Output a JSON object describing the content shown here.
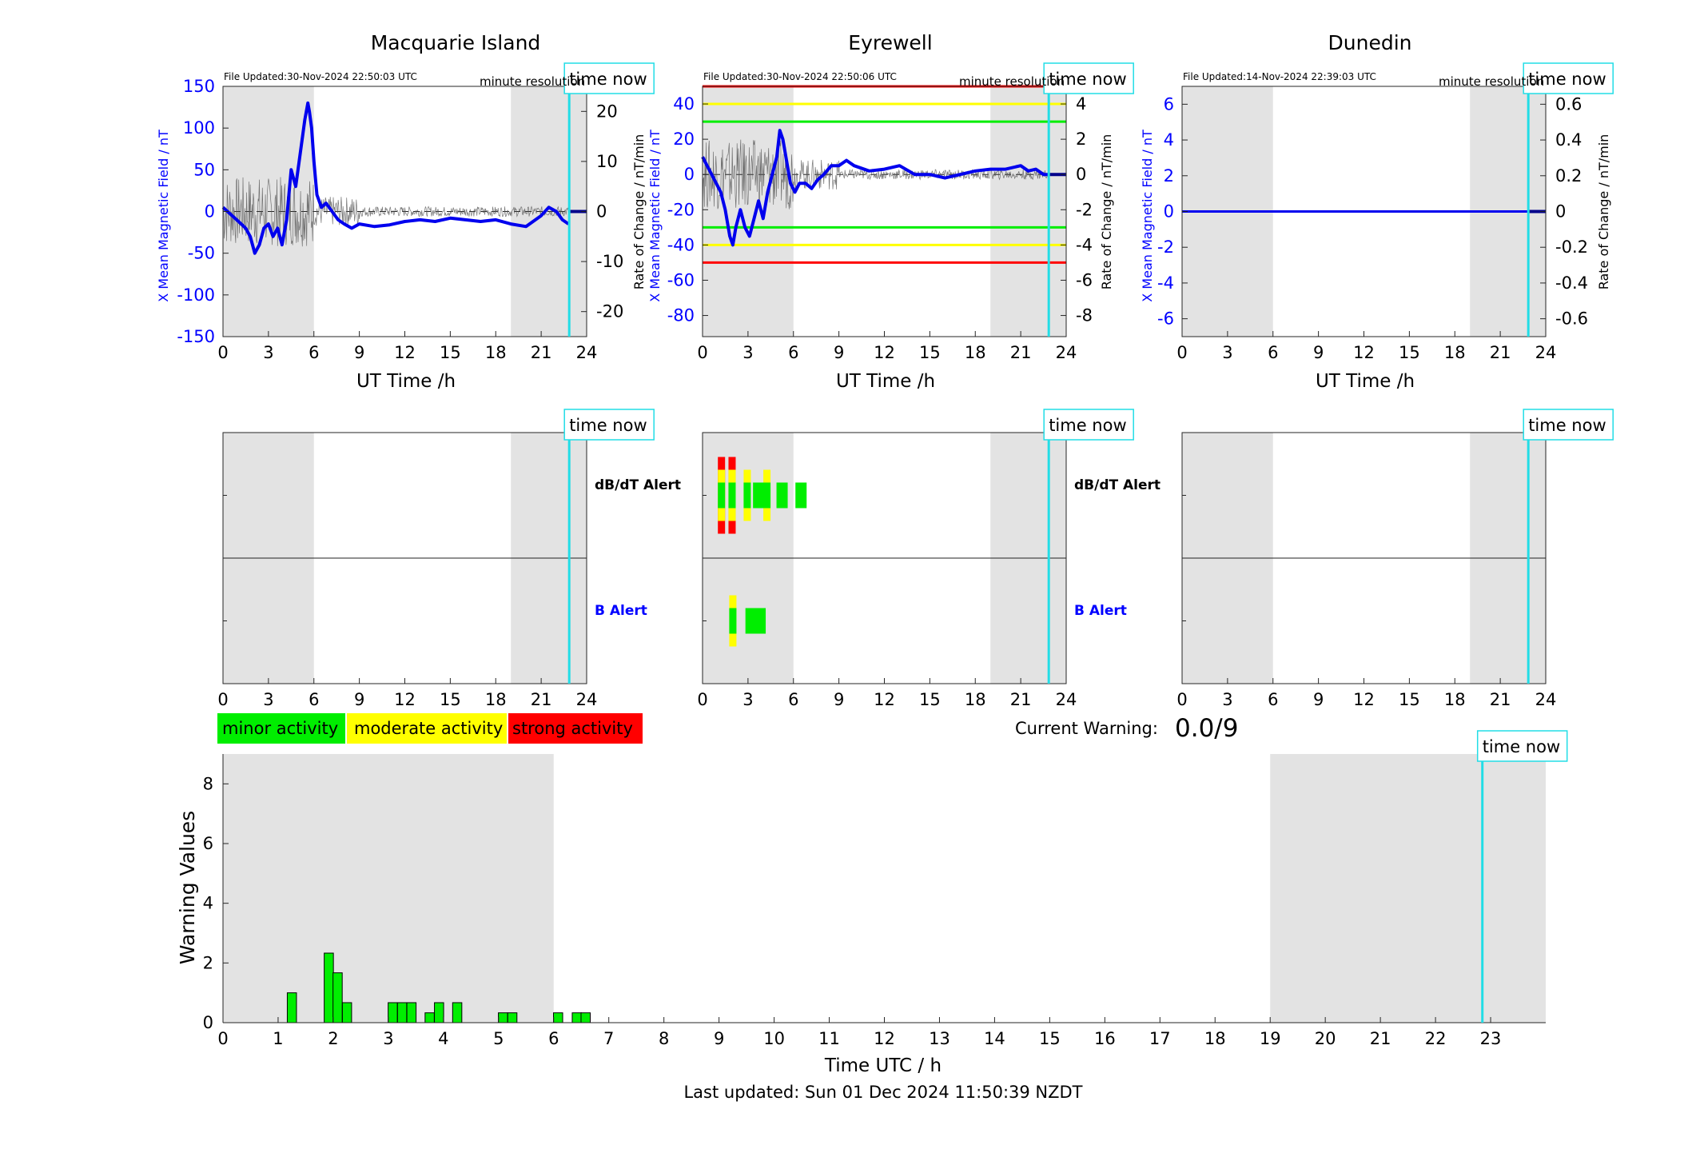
{
  "colors": {
    "b_line": "#0000ee",
    "rate_line": "#555555",
    "night_shade": "#e3e3e3",
    "time_now": "#22dde6",
    "minor": "#00ee00",
    "moderate": "#ffff00",
    "strong": "#ff0000",
    "axis_blue": "#0000ff"
  },
  "labels": {
    "time_now": "time now",
    "minute_resolution": "minute resolution",
    "ut_time": "UT Time /h",
    "y_left": "X Mean Magnetic Field / nT",
    "y_right": "Rate of Change / nT/min",
    "dbdt_alert": "dB/dT Alert",
    "b_alert": "B Alert",
    "current_warning_label": "Current Warning:",
    "current_warning_value": "0.0/9",
    "warning_ylabel": "Warning Values",
    "warning_xlabel": "Time UTC / h",
    "last_updated": "Last updated: Sun 01 Dec 2024 11:50:39 NZDT"
  },
  "legend": {
    "minor": "minor activity",
    "moderate": "moderate activity",
    "strong": "strong activity"
  },
  "chart_data": [
    {
      "type": "line",
      "title": "Macquarie Island",
      "file_updated": "File Updated:30-Nov-2024 22:50:03 UTC",
      "xlabel": "UT Time /h",
      "ylabel": "X Mean Magnetic Field / nT",
      "ylabel_right": "Rate of Change / nT/min",
      "xlim": [
        0,
        24
      ],
      "ylim": [
        -150,
        150
      ],
      "ylim_right": [
        -25,
        25
      ],
      "xticks": [
        "0",
        "3",
        "6",
        "9",
        "12",
        "15",
        "18",
        "21",
        "24"
      ],
      "yticks": [
        "150",
        "100",
        "50",
        "0",
        "-50",
        "-100",
        "-150"
      ],
      "yticks_right": [
        "20",
        "10",
        "0",
        "-10",
        "-20"
      ],
      "night_bands": [
        [
          0,
          6
        ],
        [
          19,
          24
        ]
      ],
      "time_now": 22.85,
      "threshold_lines": [],
      "series": [
        {
          "name": "X Mean Magnetic Field",
          "x": [
            0,
            0.3,
            0.6,
            0.9,
            1.2,
            1.5,
            1.8,
            2.1,
            2.4,
            2.7,
            3.0,
            3.3,
            3.6,
            3.9,
            4.2,
            4.5,
            4.8,
            5.1,
            5.4,
            5.6,
            5.7,
            5.85,
            6.0,
            6.2,
            6.5,
            6.8,
            7.2,
            7.6,
            8.0,
            8.5,
            9.0,
            10,
            11,
            12,
            13,
            14,
            15,
            16,
            17,
            18,
            19,
            20,
            21,
            21.5,
            22,
            22.4,
            22.8
          ],
          "y": [
            5,
            0,
            -5,
            -10,
            -15,
            -20,
            -30,
            -50,
            -40,
            -20,
            -15,
            -30,
            -20,
            -40,
            -10,
            50,
            30,
            70,
            110,
            130,
            120,
            100,
            60,
            20,
            5,
            10,
            0,
            -10,
            -15,
            -20,
            -15,
            -18,
            -16,
            -12,
            -10,
            -12,
            -8,
            -10,
            -12,
            -10,
            -15,
            -18,
            -5,
            5,
            0,
            -10,
            -15
          ]
        }
      ]
    },
    {
      "type": "line",
      "title": "Eyrewell",
      "file_updated": "File Updated:30-Nov-2024 22:50:06 UTC",
      "xlabel": "UT Time /h",
      "ylabel": "X Mean Magnetic Field / nT",
      "ylabel_right": "Rate of Change / nT/min",
      "xlim": [
        0,
        24
      ],
      "ylim": [
        -92,
        50
      ],
      "ylim_right": [
        -9.2,
        5
      ],
      "xticks": [
        "0",
        "3",
        "6",
        "9",
        "12",
        "15",
        "18",
        "21",
        "24"
      ],
      "yticks": [
        "40",
        "20",
        "0",
        "-20",
        "-40",
        "-60",
        "-80"
      ],
      "yticks_right": [
        "4",
        "2",
        "0",
        "-2",
        "-4",
        "-6",
        "-8"
      ],
      "night_bands": [
        [
          0,
          6
        ],
        [
          19,
          24
        ]
      ],
      "time_now": 22.85,
      "threshold_lines": [
        {
          "value": 50,
          "level": "strong"
        },
        {
          "value": 40,
          "level": "moderate"
        },
        {
          "value": 30,
          "level": "minor"
        },
        {
          "value": -30,
          "level": "minor"
        },
        {
          "value": -40,
          "level": "moderate"
        },
        {
          "value": -50,
          "level": "strong"
        }
      ],
      "series": [
        {
          "name": "X Mean Magnetic Field",
          "x": [
            0,
            0.3,
            0.6,
            0.9,
            1.2,
            1.5,
            1.8,
            2.0,
            2.2,
            2.5,
            2.8,
            3.1,
            3.4,
            3.7,
            4.0,
            4.3,
            4.6,
            4.9,
            5.1,
            5.3,
            5.5,
            5.8,
            6.1,
            6.4,
            6.8,
            7.2,
            7.6,
            8.0,
            8.5,
            9.0,
            9.5,
            10,
            11,
            12,
            13,
            14,
            15,
            16,
            17,
            18,
            19,
            20,
            21,
            21.5,
            22,
            22.5,
            22.9
          ],
          "y": [
            10,
            5,
            0,
            -5,
            -10,
            -20,
            -35,
            -40,
            -30,
            -20,
            -30,
            -35,
            -25,
            -15,
            -25,
            -10,
            0,
            10,
            25,
            20,
            10,
            -5,
            -10,
            -5,
            -5,
            -8,
            -3,
            0,
            5,
            5,
            8,
            5,
            2,
            3,
            5,
            0,
            0,
            -2,
            0,
            2,
            3,
            3,
            5,
            2,
            3,
            0,
            0
          ]
        }
      ]
    },
    {
      "type": "line",
      "title": "Dunedin",
      "file_updated": "File Updated:14-Nov-2024 22:39:03 UTC",
      "xlabel": "UT Time /h",
      "ylabel": "X Mean Magnetic Field / nT",
      "ylabel_right": "Rate of Change / nT/min",
      "xlim": [
        0,
        24
      ],
      "ylim": [
        -7,
        7
      ],
      "ylim_right": [
        -0.7,
        0.7
      ],
      "xticks": [
        "0",
        "3",
        "6",
        "9",
        "12",
        "15",
        "18",
        "21",
        "24"
      ],
      "yticks": [
        "6",
        "4",
        "2",
        "0",
        "-2",
        "-4",
        "-6"
      ],
      "yticks_right": [
        "0.6",
        "0.4",
        "0.2",
        "0",
        "-0.2",
        "-0.4",
        "-0.6"
      ],
      "night_bands": [
        [
          0,
          6
        ],
        [
          19,
          24
        ]
      ],
      "time_now": 22.85,
      "threshold_lines": [],
      "series": [
        {
          "name": "X Mean Magnetic Field",
          "x": [
            0,
            24
          ],
          "y": [
            0,
            0
          ]
        }
      ]
    },
    {
      "type": "timeline",
      "station": "Macquarie Island",
      "xlim": [
        0,
        24
      ],
      "xticks": [
        "0",
        "3",
        "6",
        "9",
        "12",
        "15",
        "18",
        "21",
        "24"
      ],
      "night_bands": [
        [
          0,
          6
        ],
        [
          19,
          24
        ]
      ],
      "time_now": 22.85,
      "dbdt_alerts": [],
      "b_alerts": []
    },
    {
      "type": "timeline",
      "station": "Eyrewell",
      "xlim": [
        0,
        24
      ],
      "xticks": [
        "0",
        "3",
        "6",
        "9",
        "12",
        "15",
        "18",
        "21",
        "24"
      ],
      "night_bands": [
        [
          0,
          6
        ],
        [
          19,
          24
        ]
      ],
      "time_now": 22.85,
      "dbdt_alerts": [
        {
          "t": 1.25,
          "level": 3
        },
        {
          "t": 1.95,
          "level": 3
        },
        {
          "t": 2.95,
          "level": 2
        },
        {
          "t": 4.25,
          "level": 2
        },
        {
          "t": 5.25,
          "level": 1
        },
        {
          "t": 6.5,
          "level": 1
        },
        {
          "t": 3.7,
          "level": 1
        }
      ],
      "b_alerts": [
        {
          "t": 2.0,
          "level": 2
        },
        {
          "t": 3.2,
          "level": 1
        },
        {
          "t": 3.8,
          "level": 1
        }
      ]
    },
    {
      "type": "timeline",
      "station": "Dunedin",
      "xlim": [
        0,
        24
      ],
      "xticks": [
        "0",
        "3",
        "6",
        "9",
        "12",
        "15",
        "18",
        "21",
        "24"
      ],
      "night_bands": [
        [
          0,
          6
        ],
        [
          19,
          24
        ]
      ],
      "time_now": 22.85,
      "dbdt_alerts": [],
      "b_alerts": []
    },
    {
      "type": "bar",
      "xlabel": "Time UTC / h",
      "ylabel": "Warning Values",
      "xlim": [
        0,
        24
      ],
      "ylim": [
        0,
        9
      ],
      "xticks": [
        "0",
        "1",
        "2",
        "3",
        "4",
        "5",
        "6",
        "7",
        "8",
        "9",
        "10",
        "11",
        "12",
        "13",
        "14",
        "15",
        "16",
        "17",
        "18",
        "19",
        "20",
        "21",
        "22",
        "23"
      ],
      "yticks": [
        "0",
        "2",
        "4",
        "6",
        "8"
      ],
      "night_bands": [
        [
          0,
          6
        ],
        [
          19,
          24
        ]
      ],
      "time_now": 22.85,
      "bar_width": 0.167,
      "x": [
        1.25,
        1.92,
        2.08,
        2.25,
        3.08,
        3.25,
        3.42,
        3.75,
        3.92,
        4.25,
        5.08,
        5.25,
        6.08,
        6.42,
        6.58
      ],
      "values": [
        1.0,
        2.33,
        1.67,
        0.67,
        0.67,
        0.67,
        0.67,
        0.33,
        0.67,
        0.67,
        0.33,
        0.33,
        0.33,
        0.33,
        0.33
      ]
    }
  ]
}
